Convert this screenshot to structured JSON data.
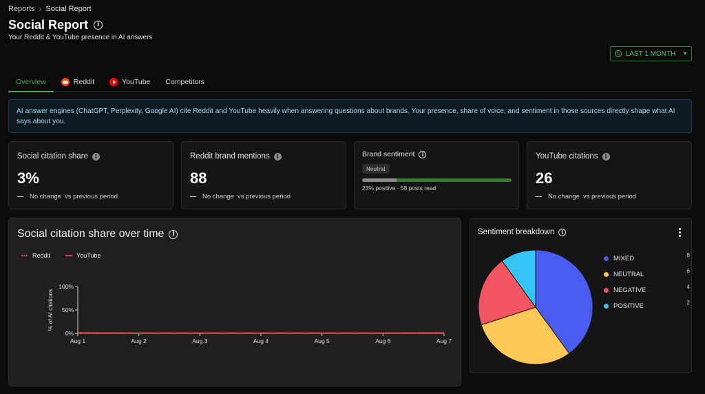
{
  "breadcrumb": {
    "parent": "Reports",
    "current": "Social Report"
  },
  "page": {
    "title": "Social Report",
    "subtitle": "Your Reddit & YouTube presence in AI answers"
  },
  "date_range": {
    "label": "LAST 1 MONTH"
  },
  "tabs": [
    {
      "label": "Overview",
      "icon": "",
      "active": true
    },
    {
      "label": "Reddit",
      "icon": "reddit-icon",
      "active": false
    },
    {
      "label": "YouTube",
      "icon": "youtube-icon",
      "active": false
    },
    {
      "label": "Competitors",
      "icon": "",
      "active": false
    }
  ],
  "banner": {
    "text": "AI answer engines (ChatGPT, Perplexity, Google AI) cite Reddit and YouTube heavily when answering questions about brands. Your presence, share of voice, and sentiment in those sources directly shape what AI says about you."
  },
  "kpis": {
    "citation_share": {
      "title": "Social citation share",
      "value": "3%",
      "change": "No change",
      "period": "vs previous period"
    },
    "reddit_mentions": {
      "title": "Reddit brand mentions",
      "value": "88",
      "change": "No change",
      "period": "vs previous period"
    },
    "brand_sentiment": {
      "title": "Brand sentiment",
      "badge": "Neutral",
      "positive_fraction": 0.23,
      "caption": "23% positive · 58 posts read"
    },
    "youtube_citations": {
      "title": "YouTube citations",
      "value": "26",
      "change": "No change",
      "period": "vs previous period"
    }
  },
  "line_chart": {
    "title": "Social citation share over time",
    "chart_data": {
      "type": "line",
      "ylabel": "% of AI citations",
      "x": [
        "Aug 1",
        "Aug 2",
        "Aug 3",
        "Aug 4",
        "Aug 5",
        "Aug 6",
        "Aug 7"
      ],
      "yticks": [
        "100%",
        "50%",
        "0%"
      ],
      "ylim": [
        0,
        100
      ],
      "series": [
        {
          "name": "Reddit",
          "style": "dotted",
          "color": "#e53935",
          "values": [
            2,
            1,
            1,
            1,
            1,
            1,
            2
          ]
        },
        {
          "name": "YouTube",
          "style": "solid",
          "color": "#e53935",
          "values": [
            1,
            1,
            1,
            1,
            1,
            1,
            1
          ]
        }
      ]
    }
  },
  "pie_chart": {
    "title": "Sentiment breakdown",
    "chart_data": {
      "type": "pie",
      "slices": [
        {
          "label": "MIXED",
          "value": 8,
          "color": "#4a5cf0"
        },
        {
          "label": "NEUTRAL",
          "value": 6,
          "color": "#ffc857"
        },
        {
          "label": "NEGATIVE",
          "value": 4,
          "color": "#f25461"
        },
        {
          "label": "POSITIVE",
          "value": 2,
          "color": "#35c4f7"
        }
      ]
    }
  }
}
